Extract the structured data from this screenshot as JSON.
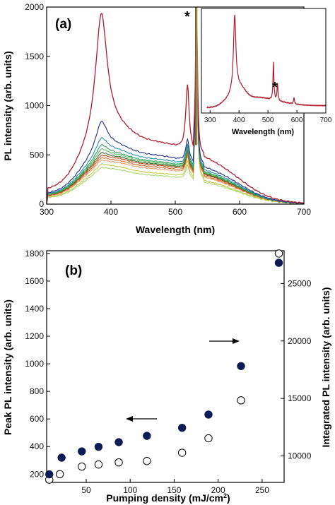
{
  "chart_data": [
    {
      "panel": "(a)",
      "type": "line",
      "xlabel": "Wavelength (nm)",
      "ylabel": "PL intensity (arb. units)",
      "xlim": [
        300,
        700
      ],
      "ylim": [
        0,
        2000
      ],
      "xticks": [
        300,
        400,
        500,
        600,
        700
      ],
      "yticks": [
        0,
        500,
        1000,
        1500,
        2000
      ],
      "grid": false,
      "annotation": "*",
      "series": [
        {
          "color": "#b01c2e",
          "peak_385": 1790,
          "shoulder": 540,
          "peak_520": 1170,
          "baseline_500": 500,
          "tail_700": 0
        },
        {
          "color": "#1f2f8a",
          "peak_385": 720,
          "shoulder": 420,
          "peak_520": 630,
          "baseline_500": 400,
          "tail_700": 0
        },
        {
          "color": "#2a8fb0",
          "peak_385": 560,
          "shoulder": 385,
          "peak_520": 580,
          "baseline_500": 370,
          "tail_700": 0
        },
        {
          "color": "#2aa15c",
          "peak_385": 495,
          "shoulder": 360,
          "peak_520": 560,
          "baseline_500": 350,
          "tail_700": 0
        },
        {
          "color": "#5cb85c",
          "peak_385": 455,
          "shoulder": 350,
          "peak_520": 540,
          "baseline_500": 340,
          "tail_700": 0
        },
        {
          "color": "#3a6a2a",
          "peak_385": 420,
          "shoulder": 335,
          "peak_520": 520,
          "baseline_500": 330,
          "tail_700": 0
        },
        {
          "color": "#b84a1c",
          "peak_385": 395,
          "shoulder": 325,
          "peak_520": 500,
          "baseline_500": 320,
          "tail_700": 0
        },
        {
          "color": "#d86a2a",
          "peak_385": 375,
          "shoulder": 310,
          "peak_520": 480,
          "baseline_500": 305,
          "tail_700": 0
        },
        {
          "color": "#e89a6a",
          "peak_385": 355,
          "shoulder": 295,
          "peak_520": 460,
          "baseline_500": 290,
          "tail_700": 0
        },
        {
          "color": "#c6cc4a",
          "peak_385": 330,
          "shoulder": 270,
          "peak_520": 420,
          "baseline_500": 255,
          "tail_700": 0
        },
        {
          "color": "#a8d870",
          "peak_385": 300,
          "shoulder": 250,
          "peak_520": 380,
          "baseline_500": 235,
          "tail_700": 0
        }
      ],
      "inset": {
        "type": "line",
        "xlabel": "Wavelength (nm)",
        "xlim": [
          270,
          700
        ],
        "xticks": [
          300,
          400,
          500,
          600,
          700
        ],
        "annotation": "*",
        "color": "#b01c2e"
      }
    },
    {
      "panel": "(b)",
      "type": "scatter",
      "xlabel": "Pumping density (mJ/cm",
      "xlabel_sup": "2",
      "xlabel_close": ")",
      "ylabel": "Peak PL intensity (arb. units)",
      "y2label": "Integrated PL intensity (arb. units)",
      "xlim": [
        5,
        275
      ],
      "ylim": [
        140,
        1820
      ],
      "y2lim": [
        7700,
        27850
      ],
      "xticks": [
        50,
        100,
        150,
        200,
        250
      ],
      "yticks": [
        200,
        400,
        600,
        800,
        1000,
        1200,
        1400,
        1600,
        1800
      ],
      "y2ticks": [
        10000,
        15000,
        20000,
        25000
      ],
      "grid": false,
      "series": [
        {
          "style": "open",
          "axis": "left",
          "x": [
            8,
            20,
            45,
            64,
            87,
            119,
            159,
            189,
            226,
            269
          ],
          "y": [
            160,
            200,
            255,
            270,
            285,
            295,
            355,
            460,
            735,
            1800
          ]
        },
        {
          "style": "filled",
          "axis": "right",
          "color": "#0d1a54",
          "x": [
            8,
            22,
            45,
            64,
            87,
            119,
            159,
            189,
            226,
            269
          ],
          "y": [
            8400,
            9850,
            10400,
            10800,
            11200,
            11750,
            12450,
            13600,
            17820,
            26800
          ]
        }
      ]
    }
  ]
}
